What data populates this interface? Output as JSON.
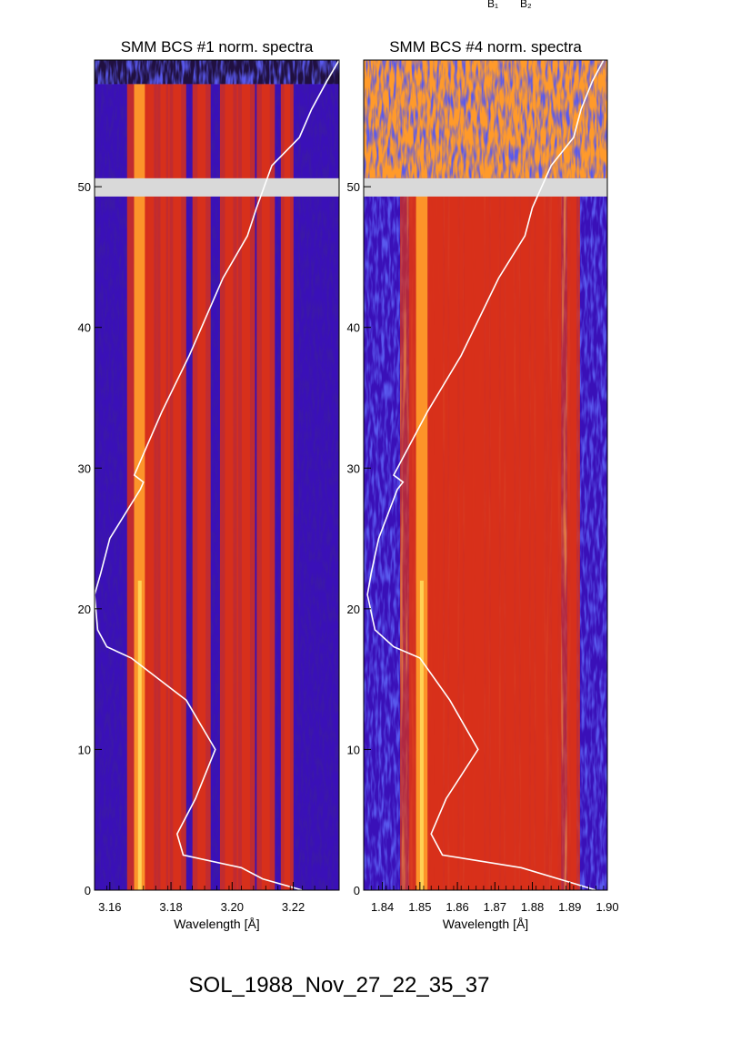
{
  "top_labels": [
    "B₁",
    "B₂"
  ],
  "footer_title": "SOL_1988_Nov_27_22_35_37",
  "colors": {
    "background_low": "#3a10b8",
    "line_red": "#d8301a",
    "line_orange": "#ff9a2a",
    "line_yellow": "#ffe060",
    "gap": "#d9d9d9",
    "overlay_curve": "#ffffff"
  },
  "chart_data": [
    {
      "type": "heatmap",
      "title": "SMM BCS #1 norm. spectra",
      "xlabel": "Wavelength [Å]",
      "ylabel": "",
      "xlim": [
        3.155,
        3.235
      ],
      "ylim": [
        0,
        59
      ],
      "x_ticks": [
        "3.16",
        "3.18",
        "3.20",
        "3.22"
      ],
      "x_tick_values": [
        3.16,
        3.18,
        3.2,
        3.22
      ],
      "y_ticks": [
        "0",
        "10",
        "20",
        "30",
        "40",
        "50"
      ],
      "y_tick_values": [
        0,
        10,
        20,
        30,
        40,
        50
      ],
      "data_gap": [
        49.3,
        50.6
      ],
      "noise_band": [
        57.3,
        59
      ],
      "emission_lines": [
        {
          "wavelength": 3.1698,
          "strength": "strong"
        },
        {
          "wavelength": 3.1735,
          "strength": "weak"
        },
        {
          "wavelength": 3.1775,
          "strength": "weak"
        },
        {
          "wavelength": 3.182,
          "strength": "medium"
        },
        {
          "wavelength": 3.19,
          "strength": "medium"
        },
        {
          "wavelength": 3.199,
          "strength": "medium"
        },
        {
          "wavelength": 3.2045,
          "strength": "medium"
        },
        {
          "wavelength": 3.211,
          "strength": "medium"
        },
        {
          "wavelength": 3.218,
          "strength": "weak"
        }
      ],
      "overlay_curve": {
        "color": "#ffffff",
        "x": [
          3.223,
          3.21,
          3.203,
          3.184,
          3.182,
          3.188,
          3.1945,
          3.185,
          3.167,
          3.159,
          3.156,
          3.155,
          3.157,
          3.16,
          3.17,
          3.171,
          3.168,
          3.177,
          3.186,
          3.197,
          3.205,
          3.208,
          3.213,
          3.222,
          3.226,
          3.231,
          3.235
        ],
        "y": [
          0,
          0.8,
          1.6,
          2.5,
          4.0,
          6.5,
          10.0,
          13.5,
          16.5,
          17.3,
          18.5,
          21.0,
          22.5,
          25.0,
          28.5,
          29.0,
          29.5,
          34.0,
          38.0,
          43.5,
          46.5,
          48.5,
          51.5,
          53.5,
          55.5,
          57.5,
          59.0
        ]
      }
    },
    {
      "type": "heatmap",
      "title": "SMM BCS #4 norm. spectra",
      "xlabel": "Wavelength [Å]",
      "ylabel": "",
      "xlim": [
        1.835,
        1.9
      ],
      "ylim": [
        0,
        59
      ],
      "x_ticks": [
        "1.84",
        "1.85",
        "1.86",
        "1.87",
        "1.88",
        "1.89",
        "1.90"
      ],
      "x_tick_values": [
        1.84,
        1.85,
        1.86,
        1.87,
        1.88,
        1.89,
        1.9
      ],
      "y_ticks": [
        "0",
        "10",
        "20",
        "30",
        "40",
        "50"
      ],
      "y_tick_values": [
        0,
        10,
        20,
        30,
        40,
        50
      ],
      "data_gap": [
        49.3,
        50.6
      ],
      "noise_band": [
        50.6,
        59
      ],
      "emission_lines": [
        {
          "wavelength": 1.8505,
          "strength": "strong"
        },
        {
          "wavelength": 1.855,
          "strength": "medium"
        },
        {
          "wavelength": 1.859,
          "strength": "medium"
        },
        {
          "wavelength": 1.863,
          "strength": "medium"
        },
        {
          "wavelength": 1.866,
          "strength": "medium"
        },
        {
          "wavelength": 1.87,
          "strength": "medium"
        },
        {
          "wavelength": 1.874,
          "strength": "medium"
        },
        {
          "wavelength": 1.878,
          "strength": "medium"
        },
        {
          "wavelength": 1.882,
          "strength": "medium"
        },
        {
          "wavelength": 1.886,
          "strength": "weak"
        },
        {
          "wavelength": 1.891,
          "strength": "weak"
        }
      ],
      "overlay_curve": {
        "color": "#ffffff",
        "x": [
          1.897,
          1.887,
          1.877,
          1.856,
          1.853,
          1.857,
          1.8655,
          1.858,
          1.85,
          1.843,
          1.838,
          1.836,
          1.837,
          1.839,
          1.844,
          1.8455,
          1.843,
          1.852,
          1.861,
          1.871,
          1.878,
          1.88,
          1.885,
          1.891,
          1.893,
          1.896,
          1.899
        ],
        "y": [
          0,
          0.8,
          1.6,
          2.5,
          4.0,
          6.5,
          10.0,
          13.5,
          16.5,
          17.3,
          18.5,
          21.0,
          22.5,
          25.0,
          28.5,
          29.0,
          29.5,
          34.0,
          38.0,
          43.5,
          46.5,
          48.5,
          51.5,
          53.5,
          55.5,
          57.5,
          59.0
        ]
      }
    }
  ]
}
